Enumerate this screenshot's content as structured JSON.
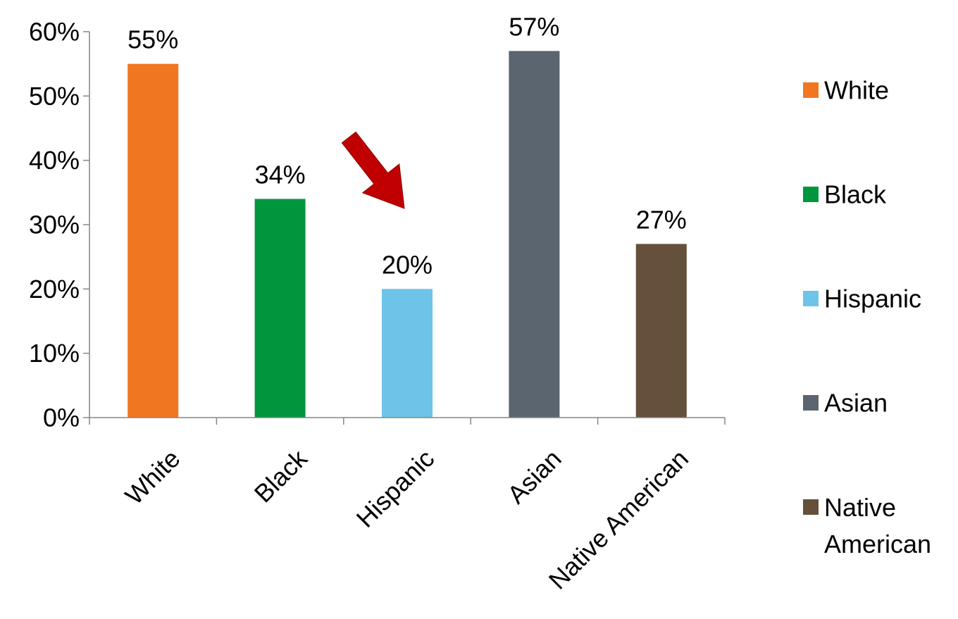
{
  "chart_data": {
    "type": "bar",
    "title": "",
    "xlabel": "",
    "ylabel": "",
    "ylim": [
      0,
      60
    ],
    "y_tick_step": 10,
    "y_tick_format": "percent",
    "grid": false,
    "legend_position": "right",
    "categories": [
      "White",
      "Black",
      "Hispanic",
      "Asian",
      "Native American"
    ],
    "values": [
      55,
      34,
      20,
      57,
      27
    ],
    "data_labels": [
      "55%",
      "34%",
      "20%",
      "57%",
      "27%"
    ],
    "colors": [
      "#F07622",
      "#00963E",
      "#6EC3E8",
      "#5B6570",
      "#65503B"
    ],
    "legend": [
      {
        "label": "White",
        "color": "#F07622"
      },
      {
        "label": "Black",
        "color": "#00963E"
      },
      {
        "label": "Hispanic",
        "color": "#6EC3E8"
      },
      {
        "label": "Asian",
        "color": "#5B6570"
      },
      {
        "label": "Native American",
        "color": "#65503B"
      }
    ],
    "annotations": [
      {
        "type": "arrow",
        "color": "#C00000",
        "points_to": "Hispanic"
      }
    ]
  }
}
